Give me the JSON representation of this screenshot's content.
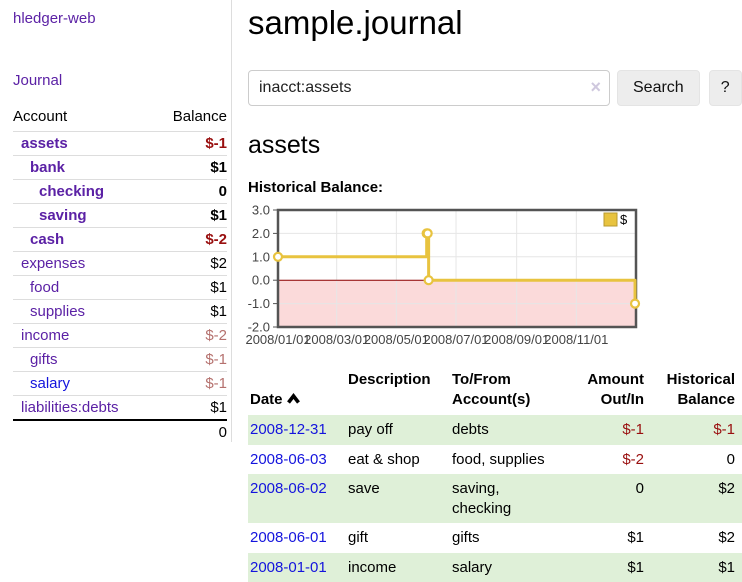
{
  "app": {
    "brand": "hledger-web",
    "nav_journal": "Journal"
  },
  "sidebar": {
    "headers": {
      "account": "Account",
      "balance": "Balance"
    },
    "accounts": [
      {
        "name": "assets",
        "balance": "$-1"
      },
      {
        "name": "bank",
        "balance": "$1"
      },
      {
        "name": "checking",
        "balance": "0"
      },
      {
        "name": "saving",
        "balance": "$1"
      },
      {
        "name": "cash",
        "balance": "$-2"
      },
      {
        "name": "expenses",
        "balance": "$2"
      },
      {
        "name": "food",
        "balance": "$1"
      },
      {
        "name": "supplies",
        "balance": "$1"
      },
      {
        "name": "income",
        "balance": "$-2"
      },
      {
        "name": "gifts",
        "balance": "$-1"
      },
      {
        "name": "salary",
        "balance": "$-1"
      },
      {
        "name": "liabilities:debts",
        "balance": "$1"
      }
    ],
    "total": "0"
  },
  "header": {
    "title": "sample.journal"
  },
  "search": {
    "value": "inacct:assets",
    "clear_icon": "×",
    "button_label": "Search",
    "help_label": "?"
  },
  "account_page": {
    "heading": "assets",
    "chart_label": "Historical Balance:"
  },
  "chart_data": {
    "type": "line",
    "step": true,
    "title": "Historical Balance:",
    "legend_position": "top-right",
    "ylim": [
      -2,
      3
    ],
    "x_range_days": 366,
    "yticks": {
      "values": [
        3,
        2,
        1,
        0,
        -1,
        -2
      ],
      "labels": [
        "3.0",
        "2.0",
        "1.0",
        "0.0",
        "-1.0",
        "-2.0"
      ]
    },
    "xticks": {
      "days": [
        0,
        60,
        121,
        182,
        244,
        305
      ],
      "labels": [
        "2008/01/01",
        "2008/03/01",
        "2008/05/01",
        "2008/07/01",
        "2008/09/01",
        "2008/11/01"
      ]
    },
    "series": [
      {
        "name": "$",
        "color": "#e8c33f",
        "dates": [
          "2008-01-01",
          "2008-06-01",
          "2008-06-02",
          "2008-06-03",
          "2008-12-31"
        ],
        "days": [
          0,
          152,
          153,
          154,
          365
        ],
        "values": [
          1,
          2,
          2,
          0,
          -1
        ]
      }
    ],
    "negative_region_color": "#fbdada",
    "zero_line_color": "#8b0000",
    "grid_color": "#e6e6e6",
    "border_color": "#545454"
  },
  "table": {
    "headers": {
      "date": "Date",
      "description": "Description",
      "accounts": "To/From\nAccount(s)",
      "amount": "Amount\nOut/In",
      "balance": "Historical\nBalance"
    },
    "sort_icon": "chevron-up",
    "rows": [
      {
        "date": "2008-12-31",
        "description": "pay off",
        "accounts": "debts",
        "amount": "$-1",
        "balance": "$-1"
      },
      {
        "date": "2008-06-03",
        "description": "eat & shop",
        "accounts": "food, supplies",
        "amount": "$-2",
        "balance": "0"
      },
      {
        "date": "2008-06-02",
        "description": "save",
        "accounts": "saving,\nchecking",
        "amount": "0",
        "balance": "$2"
      },
      {
        "date": "2008-06-01",
        "description": "gift",
        "accounts": "gifts",
        "amount": "$1",
        "balance": "$2"
      },
      {
        "date": "2008-01-01",
        "description": "income",
        "accounts": "salary",
        "amount": "$1",
        "balance": "$1"
      }
    ]
  }
}
